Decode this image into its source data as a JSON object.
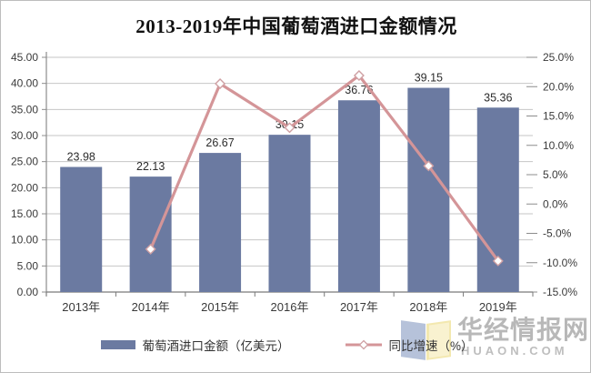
{
  "title": "2013-2019年中国葡萄酒进口金额情况",
  "chart_data": {
    "type": "bar+line",
    "categories": [
      "2013年",
      "2014年",
      "2015年",
      "2016年",
      "2017年",
      "2018年",
      "2019年"
    ],
    "series": [
      {
        "name": "葡萄酒进口金额（亿美元）",
        "type": "bar",
        "axis": "left",
        "values": [
          23.98,
          22.13,
          26.67,
          30.15,
          36.76,
          39.15,
          35.36
        ],
        "labels": [
          "23.98",
          "22.13",
          "26.67",
          "30.15",
          "36.76",
          "39.15",
          "35.36"
        ]
      },
      {
        "name": "同比增速（%）",
        "type": "line",
        "axis": "right",
        "values": [
          null,
          -7.7,
          20.5,
          13.0,
          21.9,
          6.5,
          -9.7
        ]
      }
    ],
    "left_axis": {
      "min": 0,
      "max": 45,
      "step": 5,
      "tick_labels": [
        "0.00",
        "5.00",
        "10.00",
        "15.00",
        "20.00",
        "25.00",
        "30.00",
        "35.00",
        "40.00",
        "45.00"
      ]
    },
    "right_axis": {
      "min": -15,
      "max": 25,
      "step": 5,
      "tick_labels": [
        "-15.0%",
        "-10.0%",
        "-5.0%",
        "0.0%",
        "5.0%",
        "10.0%",
        "15.0%",
        "20.0%",
        "25.0%"
      ]
    },
    "grid": true,
    "legend_position": "bottom"
  },
  "legend": {
    "bar_label": "葡萄酒进口金额（亿美元）",
    "line_label": "同比增速（%）"
  },
  "watermark": {
    "name": "华经情报网",
    "domain": "HUAON.COM"
  },
  "colors": {
    "bar": "#6b7aa1",
    "line": "#d49598",
    "marker_fill": "#ffffff",
    "marker_stroke": "#cfa0a3",
    "grid": "#c6c6c6",
    "axis": "#8c8c8c",
    "bottom_axis": "#7a7a7a",
    "text": "#3a3a3a",
    "title": "#111111",
    "watermark": "#9e9e9e"
  }
}
